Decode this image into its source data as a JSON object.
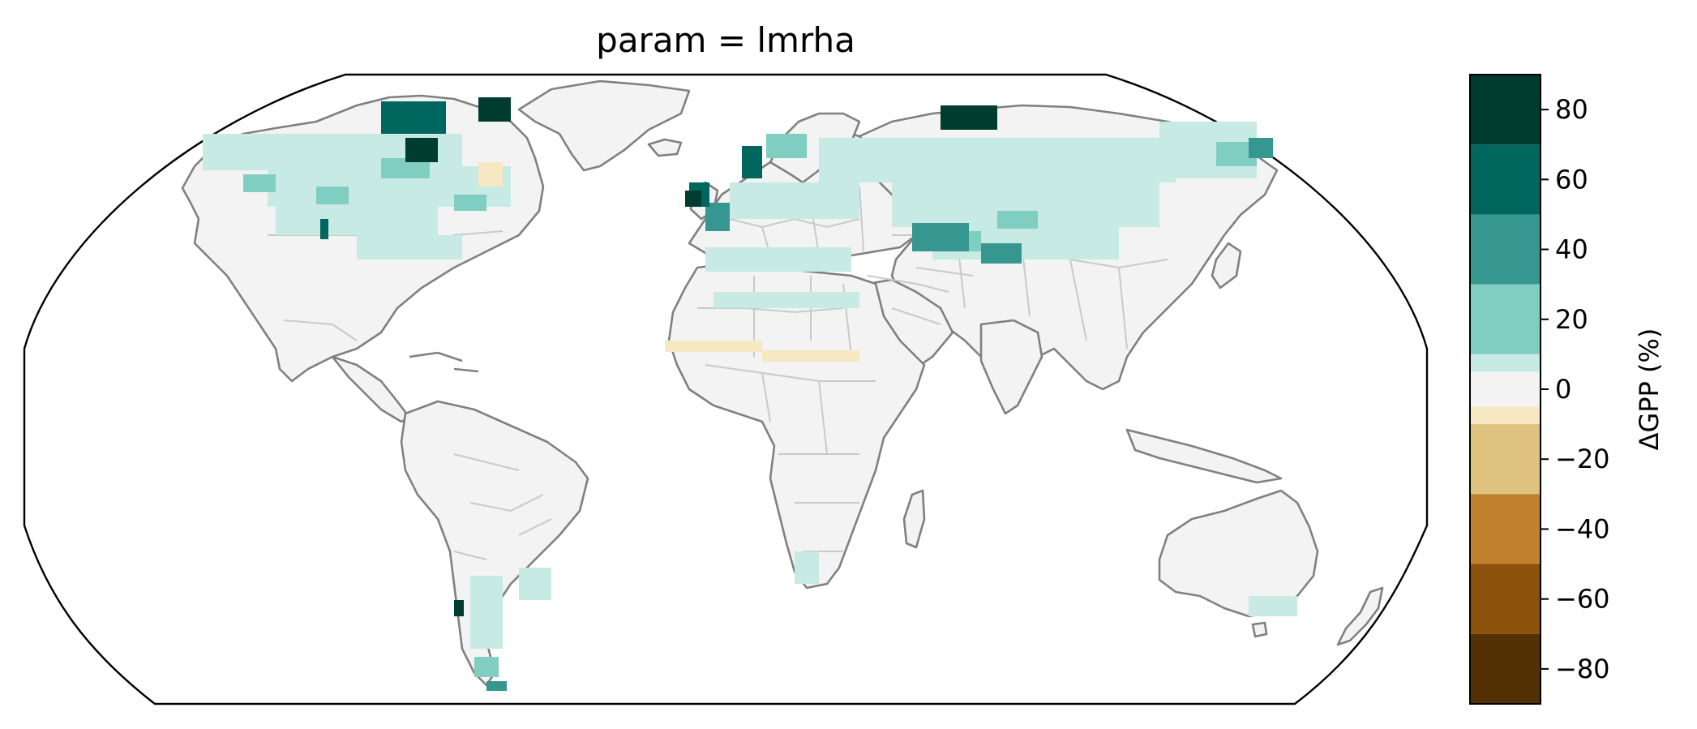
{
  "title": "param = lmrha",
  "colorbar": {
    "label": "ΔGPP (%)",
    "ticks": [
      "80",
      "60",
      "40",
      "20",
      "0",
      "−20",
      "−40",
      "−60",
      "−80"
    ],
    "tick_values": [
      80,
      60,
      40,
      20,
      0,
      -20,
      -40,
      -60,
      -80
    ],
    "range": [
      -90,
      90
    ],
    "bins": [
      {
        "from": 70,
        "to": 90,
        "color": "#003c30"
      },
      {
        "from": 50,
        "to": 70,
        "color": "#01665e"
      },
      {
        "from": 30,
        "to": 50,
        "color": "#35978f"
      },
      {
        "from": 10,
        "to": 30,
        "color": "#80cdc1"
      },
      {
        "from": 5,
        "to": 10,
        "color": "#c7eae5"
      },
      {
        "from": -5,
        "to": 5,
        "color": "#f3f3f3"
      },
      {
        "from": -10,
        "to": -5,
        "color": "#f6e8c3"
      },
      {
        "from": -30,
        "to": -10,
        "color": "#dfc27d"
      },
      {
        "from": -50,
        "to": -30,
        "color": "#bf812d"
      },
      {
        "from": -70,
        "to": -50,
        "color": "#8c510a"
      },
      {
        "from": -90,
        "to": -70,
        "color": "#543005"
      }
    ]
  },
  "map": {
    "projection": "Robinson",
    "variable": "ΔGPP (%)"
  }
}
